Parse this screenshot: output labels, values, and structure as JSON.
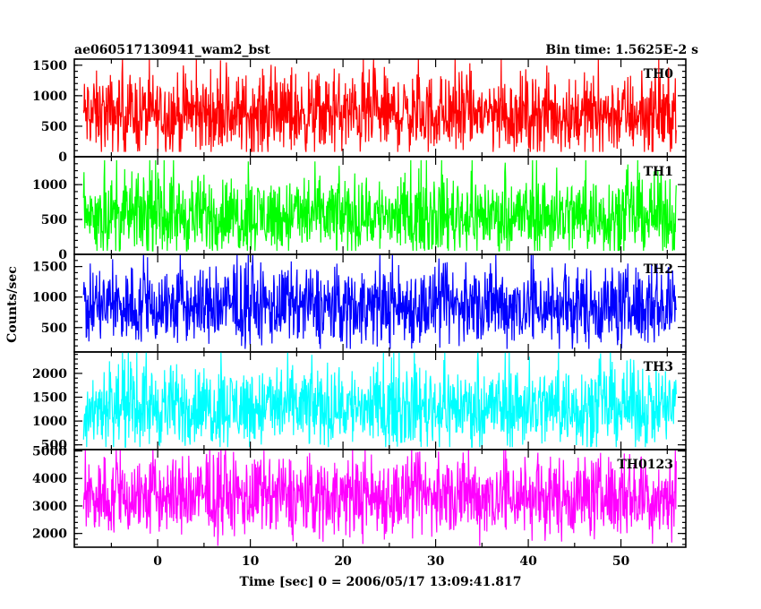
{
  "header": {
    "source": "ae060517130941_wam2_bst",
    "bin_time": "Bin time: 1.5625E-2 s"
  },
  "axes": {
    "ylabel": "Counts/sec",
    "xlabel": "Time [sec] 0 = 2006/05/17 13:09:41.817"
  },
  "chart_data": {
    "type": "line",
    "title": "ae060517130941_wam2_bst",
    "subtitle": "Bin time: 1.5625E-2 s",
    "xlabel": "Time [sec] 0 = 2006/05/17 13:09:41.817",
    "ylabel": "Counts/sec",
    "xlim": [
      -9,
      57
    ],
    "x_ticks": [
      0,
      10,
      20,
      30,
      40,
      50
    ],
    "x_data_range": [
      -8,
      56
    ],
    "series": [
      {
        "name": "TH0",
        "color": "#ff0000",
        "ylim": [
          0,
          1600
        ],
        "y_ticks": [
          0,
          500,
          1000,
          1500
        ],
        "mean": 700,
        "min": 80,
        "max": 1600
      },
      {
        "name": "TH1",
        "color": "#00ff00",
        "ylim": [
          0,
          1400
        ],
        "y_ticks": [
          0,
          500,
          1000
        ],
        "mean": 560,
        "min": 50,
        "max": 1350
      },
      {
        "name": "TH2",
        "color": "#0000ff",
        "ylim": [
          100,
          1700
        ],
        "y_ticks": [
          500,
          1000,
          1500
        ],
        "mean": 850,
        "min": 150,
        "max": 1700
      },
      {
        "name": "TH3",
        "color": "#00ffff",
        "ylim": [
          400,
          2450
        ],
        "y_ticks": [
          500,
          1000,
          1500,
          2000
        ],
        "mean": 1300,
        "min": 450,
        "max": 2450
      },
      {
        "name": "TH0123",
        "color": "#ff00ff",
        "ylim": [
          1500,
          5050
        ],
        "y_ticks": [
          2000,
          3000,
          4000,
          5000
        ],
        "mean": 3350,
        "min": 1550,
        "max": 5050
      }
    ]
  }
}
